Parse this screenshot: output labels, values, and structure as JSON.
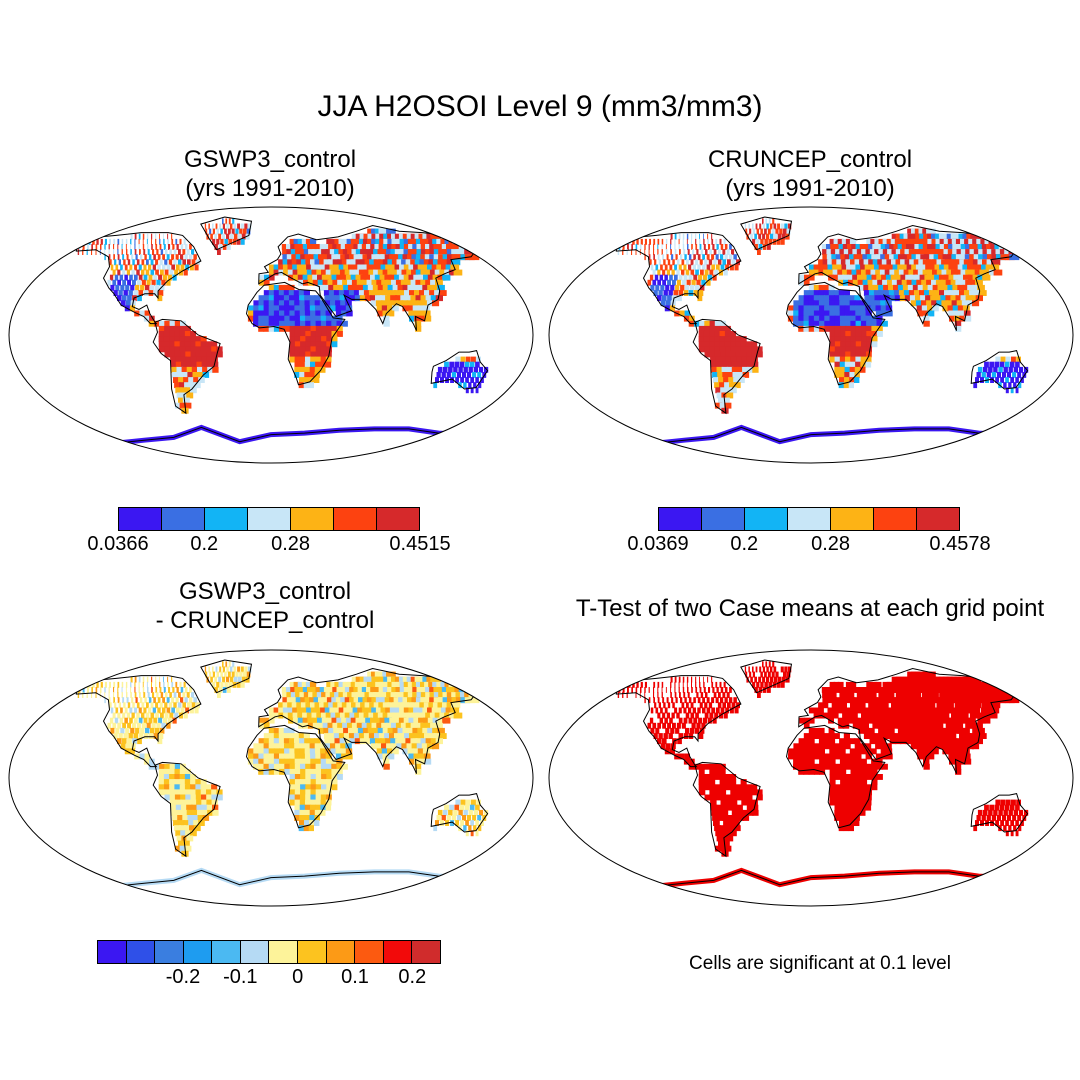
{
  "main_title": "JJA H2OSOI Level 9 (mm3/mm3)",
  "panels": [
    {
      "id": "p1",
      "title": "GSWP3_control\n(yrs 1991-2010)",
      "style": "abs"
    },
    {
      "id": "p2",
      "title": "CRUNCEP_control\n(yrs 1991-2010)",
      "style": "abs"
    },
    {
      "id": "p3",
      "title": "GSWP3_control\n- CRUNCEP_control",
      "style": "diff"
    },
    {
      "id": "p4",
      "title": "T-Test of two Case means at each grid point",
      "style": "ttest"
    }
  ],
  "colorbars": {
    "cb1": {
      "colors": [
        "#3b17f2",
        "#3a6fe3",
        "#12b4f5",
        "#c8e6f7",
        "#fdb315",
        "#fd4210",
        "#d6292b"
      ],
      "labels": [
        "0.0366",
        "0.2",
        "0.28",
        "0.4515"
      ]
    },
    "cb2": {
      "colors": [
        "#3b17f2",
        "#3a6fe3",
        "#12b4f5",
        "#c8e6f7",
        "#fdb315",
        "#fd4210",
        "#d6292b"
      ],
      "labels": [
        "0.0369",
        "0.2",
        "0.28",
        "0.4578"
      ]
    },
    "cb3": {
      "colors": [
        "#3b17f2",
        "#2f50e8",
        "#3a7ee0",
        "#1e9cf0",
        "#4bb9f2",
        "#b5daf4",
        "#fdf39a",
        "#fcc31f",
        "#fc9a16",
        "#fc5a10",
        "#f20a0a",
        "#d02c2c"
      ],
      "labels": [
        "-0.2",
        "-0.1",
        "0",
        "0.1",
        "0.2"
      ]
    }
  },
  "note": "Cells are significant at 0.1 level"
}
